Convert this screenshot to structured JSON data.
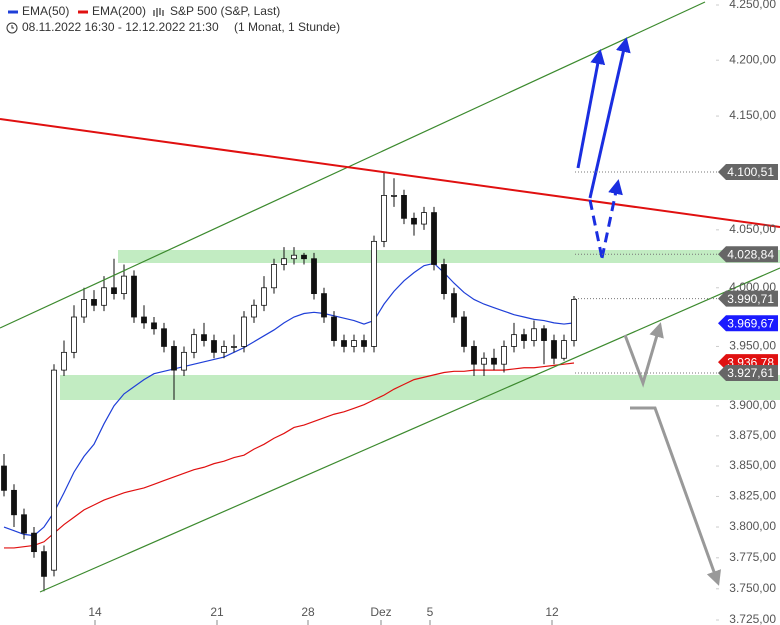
{
  "chart_data": {
    "type": "candlestick",
    "legend": [
      {
        "name": "EMA(50)",
        "color": "#1f3fd8"
      },
      {
        "name": "EMA(200)",
        "color": "#e01010"
      },
      {
        "name": "S&P 500 (S&P, Last)"
      }
    ],
    "period": "08.11.2022 16:30 - 12.12.2022 21:30",
    "interval": "(1 Monat, 1 Stunde)",
    "log_scale": true,
    "ylim": [
      3725,
      4250
    ],
    "yticks": [
      {
        "value": 4250,
        "label": "4.250,00"
      },
      {
        "value": 4200,
        "label": "4.200,00"
      },
      {
        "value": 4150,
        "label": "4.150,00"
      },
      {
        "value": 4050,
        "label": "4.050,00"
      },
      {
        "value": 4000,
        "label": "4.000,00"
      },
      {
        "value": 3950,
        "label": "3.950,00"
      },
      {
        "value": 3900,
        "label": "3.900,00"
      },
      {
        "value": 3875,
        "label": "3.875,00"
      },
      {
        "value": 3850,
        "label": "3.850,00"
      },
      {
        "value": 3825,
        "label": "3.825,00"
      },
      {
        "value": 3800,
        "label": "3.800,00"
      },
      {
        "value": 3775,
        "label": "3.775,00"
      },
      {
        "value": 3750,
        "label": "3.750,00"
      },
      {
        "value": 3725,
        "label": "3.725,00"
      }
    ],
    "xticks": [
      {
        "value": 9.1,
        "label": "14"
      },
      {
        "value": 21.3,
        "label": "21"
      },
      {
        "value": 30.4,
        "label": "28"
      },
      {
        "value": 37.7,
        "label": "Dez"
      },
      {
        "value": 42.6,
        "label": "5"
      },
      {
        "value": 54.8,
        "label": "12"
      }
    ],
    "candles": {
      "open": [
        3850,
        3830,
        3810,
        3795,
        3780,
        3765,
        3930,
        3945,
        3975,
        3990,
        3985,
        4000,
        3995,
        4010,
        3975,
        3970,
        3965,
        3950,
        3930,
        3945,
        3960,
        3955,
        3945,
        3950,
        3950,
        3975,
        3985,
        4000,
        4020,
        4025,
        4028,
        4025,
        3995,
        3975,
        3955,
        3950,
        3955,
        3950,
        4040,
        4080,
        4080,
        4060,
        4055,
        4065,
        4020,
        3995,
        3975,
        3950,
        3935,
        3940,
        3935,
        3950,
        3960,
        3955,
        3965,
        3955,
        3940,
        3955
      ],
      "high": [
        3860,
        3835,
        3815,
        3800,
        3785,
        3935,
        3955,
        3985,
        4000,
        3998,
        4010,
        4025,
        4020,
        4015,
        3985,
        3975,
        3970,
        3955,
        3950,
        3965,
        3970,
        3960,
        3955,
        3960,
        3980,
        3990,
        4010,
        4025,
        4035,
        4035,
        4030,
        4030,
        4000,
        3980,
        3960,
        3960,
        3960,
        4045,
        4100,
        4095,
        4085,
        4065,
        4070,
        4070,
        4025,
        4000,
        3980,
        3955,
        3945,
        3948,
        3955,
        3970,
        3965,
        3972,
        3968,
        3960,
        3960,
        3993
      ],
      "low": [
        3825,
        3800,
        3790,
        3775,
        3748,
        3760,
        3925,
        3940,
        3970,
        3980,
        3980,
        3990,
        3990,
        3970,
        3965,
        3960,
        3945,
        3905,
        3925,
        3940,
        3950,
        3940,
        3940,
        3945,
        3945,
        3970,
        3980,
        3995,
        4015,
        4020,
        4020,
        3990,
        3970,
        3950,
        3945,
        3945,
        3945,
        3945,
        4035,
        4070,
        4055,
        4045,
        4050,
        4015,
        3990,
        3970,
        3945,
        3925,
        3925,
        3930,
        3928,
        3945,
        3948,
        3950,
        3935,
        3935,
        3938,
        3950
      ],
      "close": [
        3830,
        3810,
        3795,
        3780,
        3760,
        3930,
        3945,
        3975,
        3990,
        3985,
        4000,
        3995,
        4010,
        3975,
        3970,
        3965,
        3950,
        3930,
        3945,
        3960,
        3955,
        3945,
        3950,
        3950,
        3975,
        3985,
        4000,
        4020,
        4025,
        4028,
        4025,
        3995,
        3975,
        3955,
        3950,
        3955,
        3950,
        4040,
        4080,
        4080,
        4060,
        4055,
        4065,
        4020,
        3995,
        3975,
        3950,
        3935,
        3940,
        3935,
        3950,
        3960,
        3955,
        3965,
        3955,
        3940,
        3955,
        3990
      ]
    },
    "series": [
      {
        "name": "EMA(50)",
        "color": "#1f3fd8",
        "values": [
          3800,
          3797,
          3794,
          3793,
          3800,
          3812,
          3828,
          3845,
          3858,
          3868,
          3885,
          3900,
          3910,
          3916,
          3922,
          3927,
          3929,
          3931,
          3933,
          3935,
          3937,
          3939,
          3941,
          3945,
          3949,
          3954,
          3959,
          3964,
          3970,
          3975,
          3978,
          3979,
          3978,
          3976,
          3974,
          3972,
          3969,
          3972,
          3986,
          3997,
          4006,
          4013,
          4019,
          4021,
          4013,
          4004,
          3996,
          3990,
          3986,
          3983,
          3980,
          3977,
          3975,
          3973,
          3972,
          3970,
          3969,
          3970
        ]
      },
      {
        "name": "EMA(200)",
        "color": "#e01010",
        "values": [
          3783,
          3783,
          3784,
          3785,
          3788,
          3795,
          3802,
          3808,
          3814,
          3818,
          3822,
          3825,
          3828,
          3830,
          3832,
          3835,
          3838,
          3841,
          3844,
          3847,
          3849,
          3852,
          3854,
          3857,
          3859,
          3864,
          3868,
          3873,
          3877,
          3882,
          3884,
          3887,
          3890,
          3893,
          3895,
          3898,
          3901,
          3905,
          3909,
          3914,
          3918,
          3922,
          3924,
          3926,
          3928,
          3929,
          3929,
          3930,
          3930,
          3930,
          3930,
          3931,
          3932,
          3932,
          3933,
          3934,
          3935,
          3936
        ]
      }
    ],
    "price_tags": [
      {
        "value": 4100.51,
        "label": "4.100,51",
        "color": "#666666"
      },
      {
        "value": 4028.84,
        "label": "4.028,84",
        "color": "#666666"
      },
      {
        "value": 3990.71,
        "label": "3.990,71",
        "color": "#666666"
      },
      {
        "value": 3969.67,
        "label": "3.969,67",
        "color": "#1a1aff"
      },
      {
        "value": 3936.78,
        "label": "3.936,78",
        "color": "#e01010"
      },
      {
        "value": 3927.61,
        "label": "3.927,61",
        "color": "#666666"
      }
    ]
  }
}
